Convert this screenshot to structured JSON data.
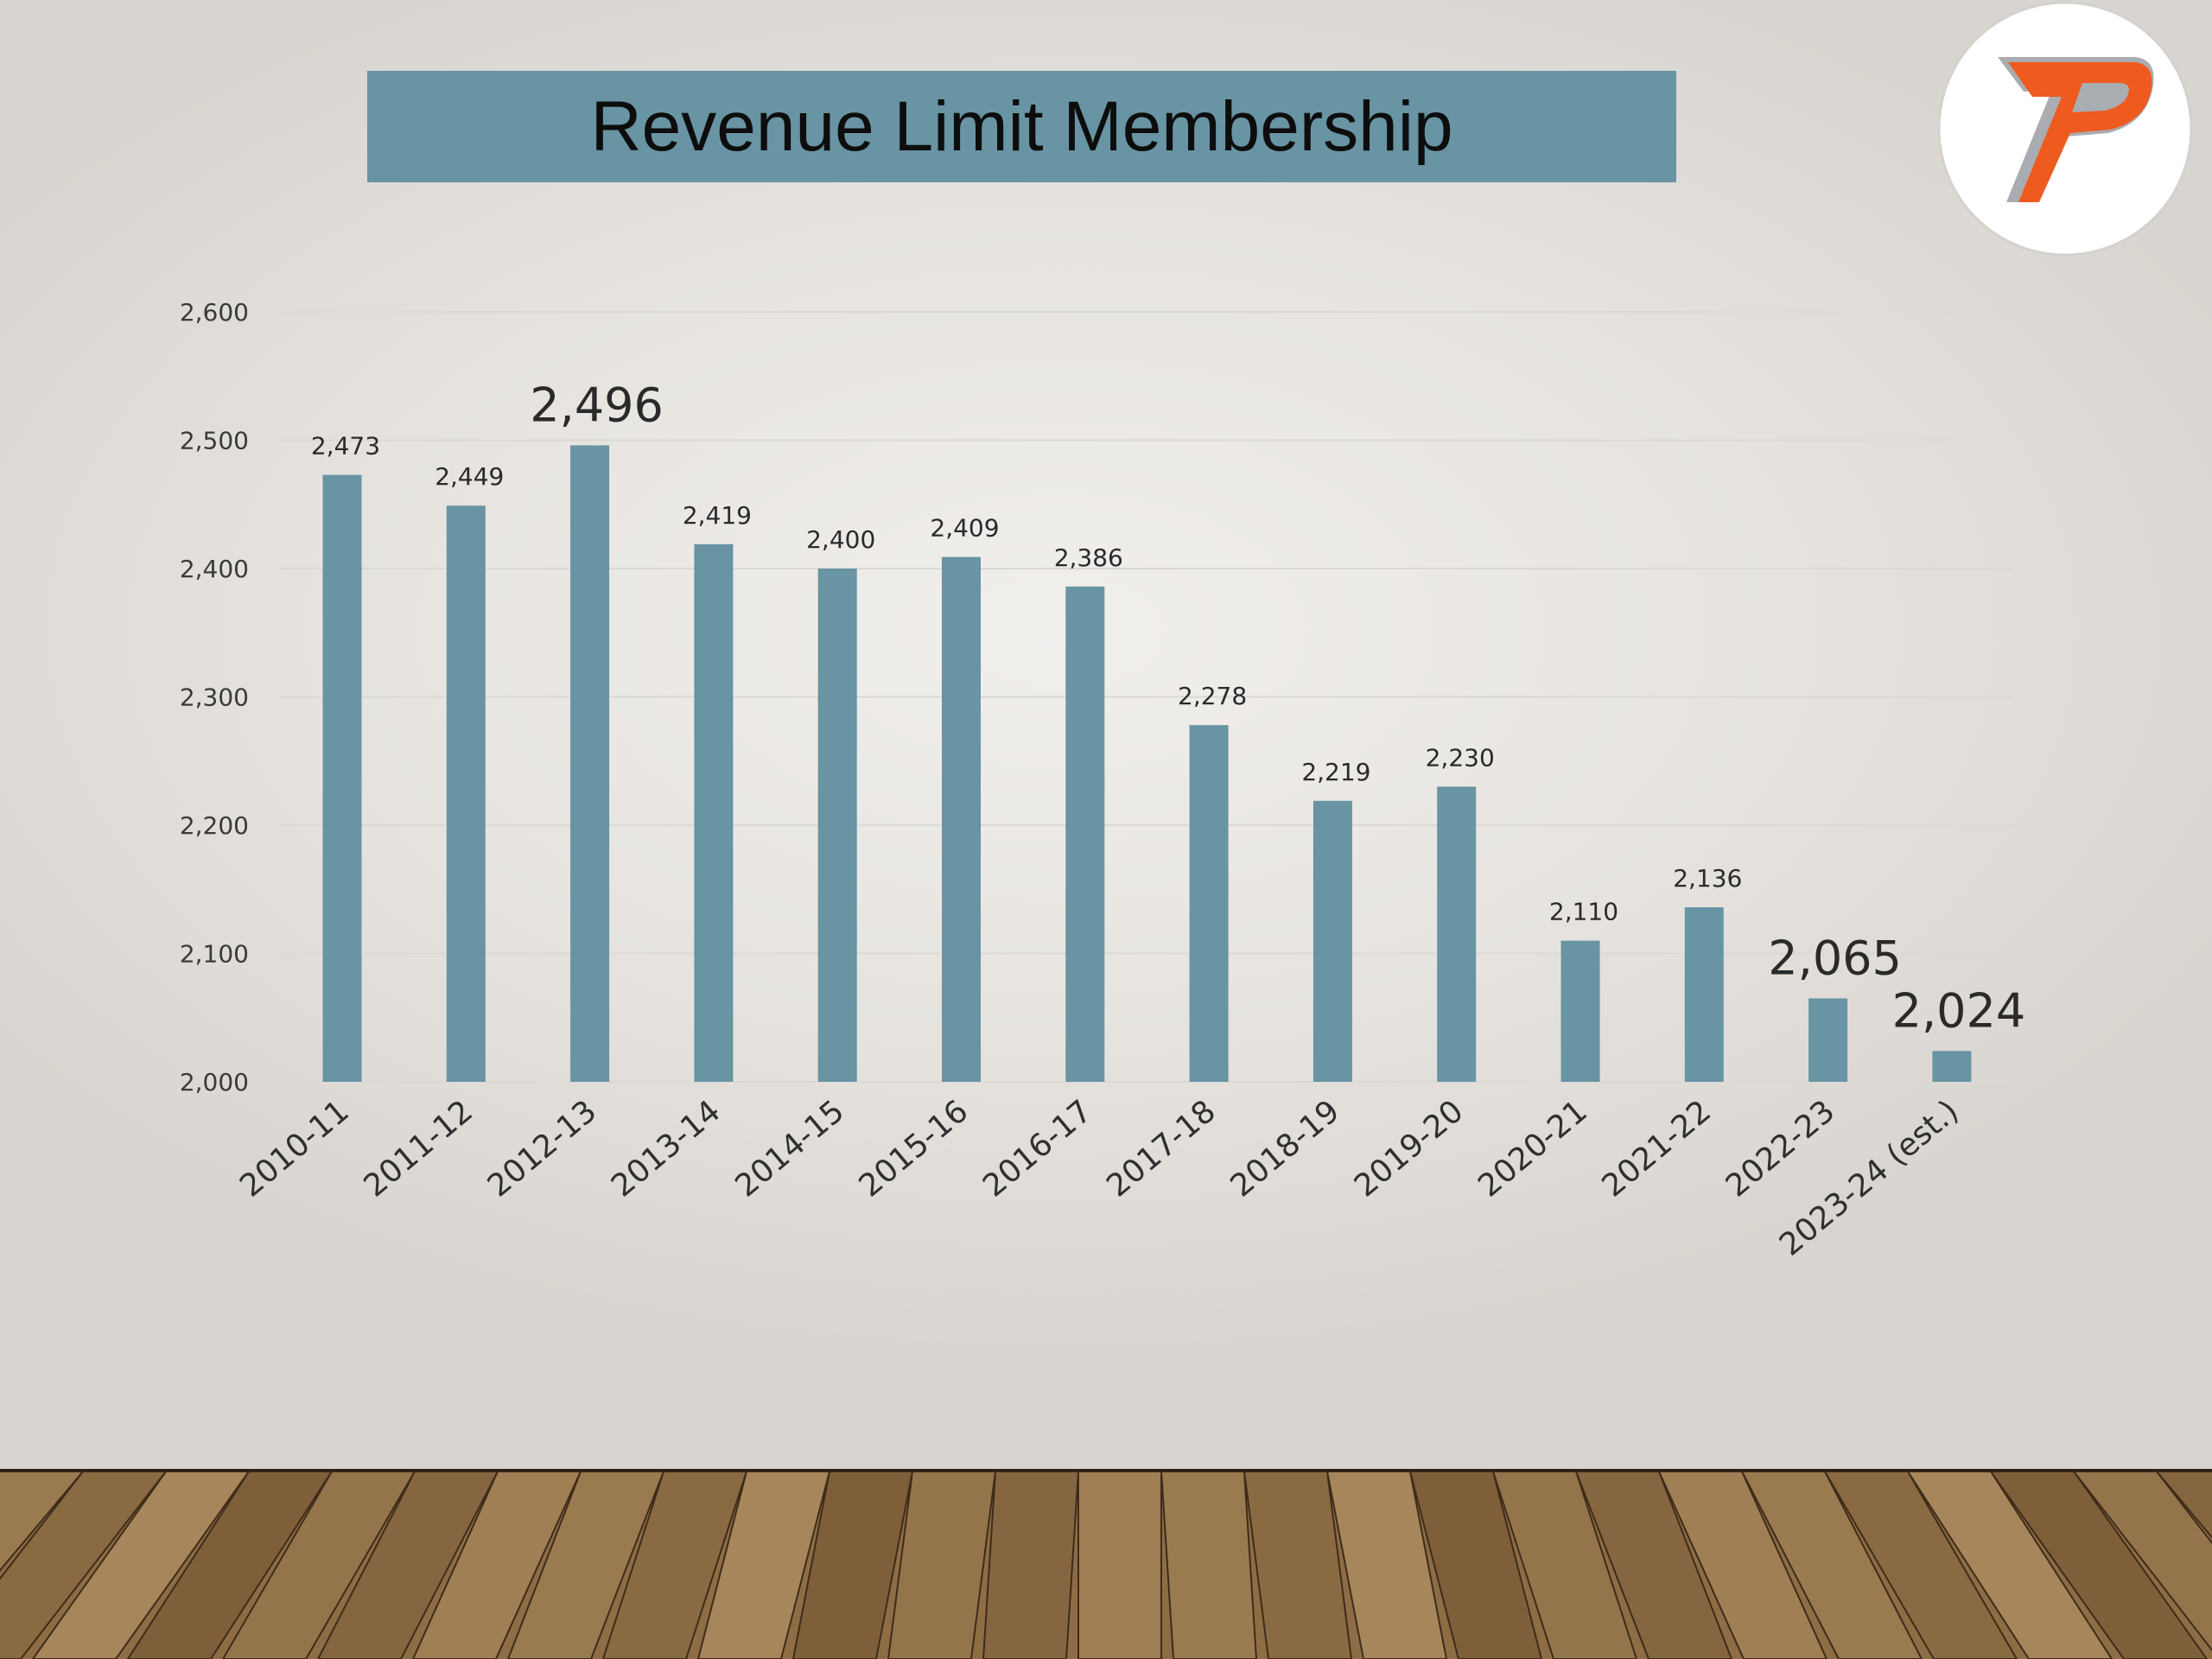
{
  "slide": {
    "colors": {
      "bar": "#6894a3",
      "banner": "#6894a3",
      "logo_orange": "#ef5a1e",
      "logo_silver": "#a9acb0"
    },
    "logo_icon": "letter-p-logo"
  },
  "chart_data": {
    "type": "bar",
    "title": "Revenue Limit Membership",
    "xlabel": "",
    "ylabel": "",
    "ylim": [
      2000,
      2600
    ],
    "yticks": [
      "2,000",
      "2,100",
      "2,200",
      "2,300",
      "2,400",
      "2,500",
      "2,600"
    ],
    "grid": true,
    "legend": "none",
    "categories": [
      "2010-11",
      "2011-12",
      "2012-13",
      "2013-14",
      "2014-15",
      "2015-16",
      "2016-17",
      "2017-18",
      "2018-19",
      "2019-20",
      "2020-21",
      "2021-22",
      "2022-23",
      "2023-24 (est.)"
    ],
    "values": [
      2473,
      2449,
      2496,
      2419,
      2400,
      2409,
      2386,
      2278,
      2219,
      2230,
      2110,
      2136,
      2065,
      2024
    ],
    "data_labels": [
      "2,473",
      "2,449",
      "2,496",
      "2,419",
      "2,400",
      "2,409",
      "2,386",
      "2,278",
      "2,219",
      "2,230",
      "2,110",
      "2,136",
      "2,065",
      "2,024"
    ],
    "emphasized_labels": [
      "2012-13",
      "2022-23",
      "2023-24 (est.)"
    ]
  }
}
